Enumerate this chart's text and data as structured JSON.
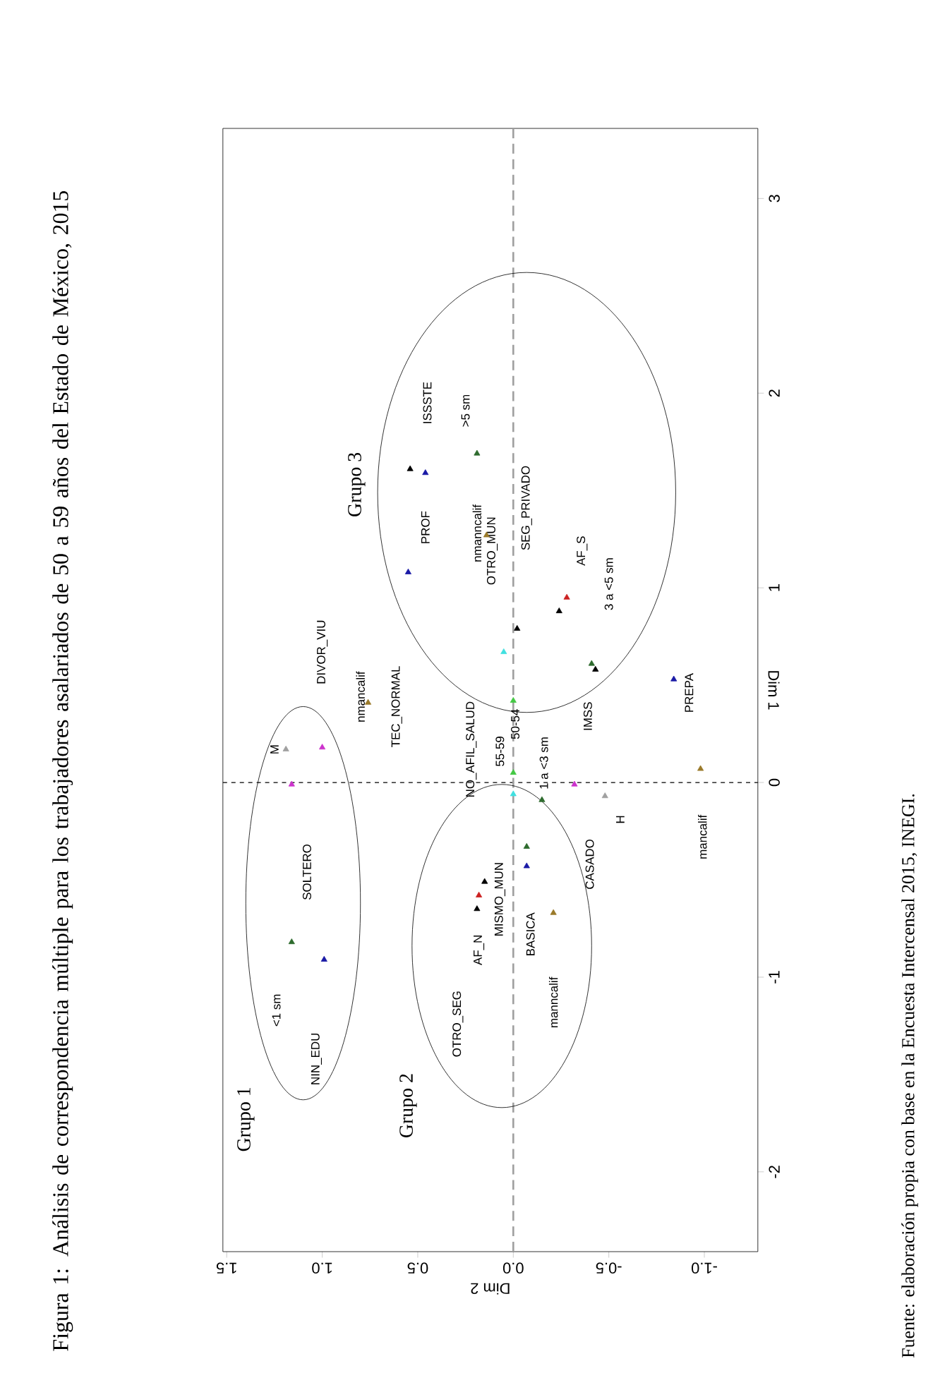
{
  "chart_data": {
    "type": "scatter",
    "title": "Figura 1: Análisis de correspondencia múltiple para los trabajadores asalariados de 50 a 59 años del Estado de México, 2015",
    "xlabel": "Dim 2",
    "ylabel": "Dim 1",
    "xlim": [
      1.52,
      -1.28
    ],
    "ylim": [
      -2.41,
      3.36
    ],
    "yticks": [
      -2,
      -1,
      0,
      1,
      2,
      3
    ],
    "xticks": [
      {
        "value": -1,
        "label": "-1.0"
      },
      {
        "value": -0.5,
        "label": "-0.5"
      },
      {
        "value": 0,
        "label": "0.0"
      },
      {
        "value": 0.5,
        "label": "0.5"
      },
      {
        "value": 1,
        "label": "1.0"
      },
      {
        "value": 1.5,
        "label": "1.5"
      }
    ],
    "marker": "triangle",
    "grid": false,
    "series": [
      {
        "color": "#000000",
        "values": [
          1.61,
          0.79,
          0.88,
          0.58,
          -0.51,
          -0.65
        ],
        "x": [
          0.54,
          -0.02,
          -0.24,
          -0.43,
          0.15,
          0.19
        ]
      },
      {
        "color": "#1a1aa6",
        "values": [
          1.59,
          1.08,
          0.53,
          -0.43,
          -0.91
        ],
        "x": [
          0.46,
          0.55,
          -0.84,
          -0.07,
          0.99
        ]
      },
      {
        "color": "#2e6b2e",
        "values": [
          1.69,
          0.61,
          -0.09,
          -0.33,
          -0.82
        ],
        "x": [
          0.19,
          -0.41,
          -0.15,
          -0.07,
          1.16
        ]
      },
      {
        "color": "#9a7a2a",
        "values": [
          1.27,
          0.41,
          0.07,
          -0.67
        ],
        "x": [
          0.14,
          0.76,
          -0.98,
          -0.21
        ]
      },
      {
        "color": "#40e0e0",
        "values": [
          0.67,
          -0.06
        ],
        "x": [
          0.05,
          0.0
        ]
      },
      {
        "color": "#44c844",
        "values": [
          0.42,
          0.05
        ],
        "x": [
          0.0,
          0.0
        ]
      },
      {
        "color": "#cc33cc",
        "values": [
          0.18,
          -0.01,
          -0.01
        ],
        "x": [
          1.0,
          1.16,
          -0.32
        ]
      },
      {
        "color": "#cc2222",
        "values": [
          0.95,
          -0.58
        ],
        "x": [
          -0.28,
          0.18
        ]
      },
      {
        "color": "#a0a0a0",
        "values": [
          0.17,
          -0.07
        ],
        "x": [
          1.19,
          -0.48
        ]
      }
    ],
    "ref_lines": [
      {
        "axis": "y",
        "value": 0,
        "line_style": "dashed"
      },
      {
        "axis": "x",
        "value": 0,
        "line_style": "dashed"
      }
    ],
    "annotations": [
      "Grupo 1",
      "Grupo 2",
      "Grupo 3",
      "Fuente: elaboración propia con base en la Encuesta Intercensal 2015, INEGI.",
      "ISSSTE",
      "PROF",
      "OTRO_MUN",
      "SEG_PRIVADO",
      "3 a <5 sm",
      "DIVOR_VIU",
      "TEC_NORMAL",
      "NO_AFIL_SALUD",
      "mancalif",
      "SOLTERO",
      "CASADO",
      "MISMO_MUN",
      "BASICA",
      "AF_N",
      "OTRO_SEG",
      "manncalif",
      "<1 sm",
      "NIN_EDU",
      {
        "text": ">5 sm",
        "x": 0.19,
        "y": 1.69
      },
      {
        "text": "nmanncalif",
        "x": 0.14,
        "y": 1.27
      },
      {
        "text": "AF_S",
        "x": -0.28,
        "y": 0.95
      },
      {
        "text": "PREPA",
        "x": -0.84,
        "y": 0.53
      },
      {
        "text": "nmancalif",
        "x": 0.76,
        "y": 0.41
      },
      {
        "text": "M",
        "x": 1.19,
        "y": 0.17
      },
      {
        "text": "55-59",
        "x": 0.0,
        "y": 0.05
      },
      {
        "text": "50-54",
        "x": 0.0,
        "y": 0.42
      },
      {
        "text": "IMSS",
        "x": -0.43,
        "y": 0.58
      },
      {
        "text": "1 a <3 sm",
        "x": -0.15,
        "y": -0.09
      },
      {
        "text": "H",
        "x": -0.48,
        "y": -0.07
      }
    ]
  }
}
